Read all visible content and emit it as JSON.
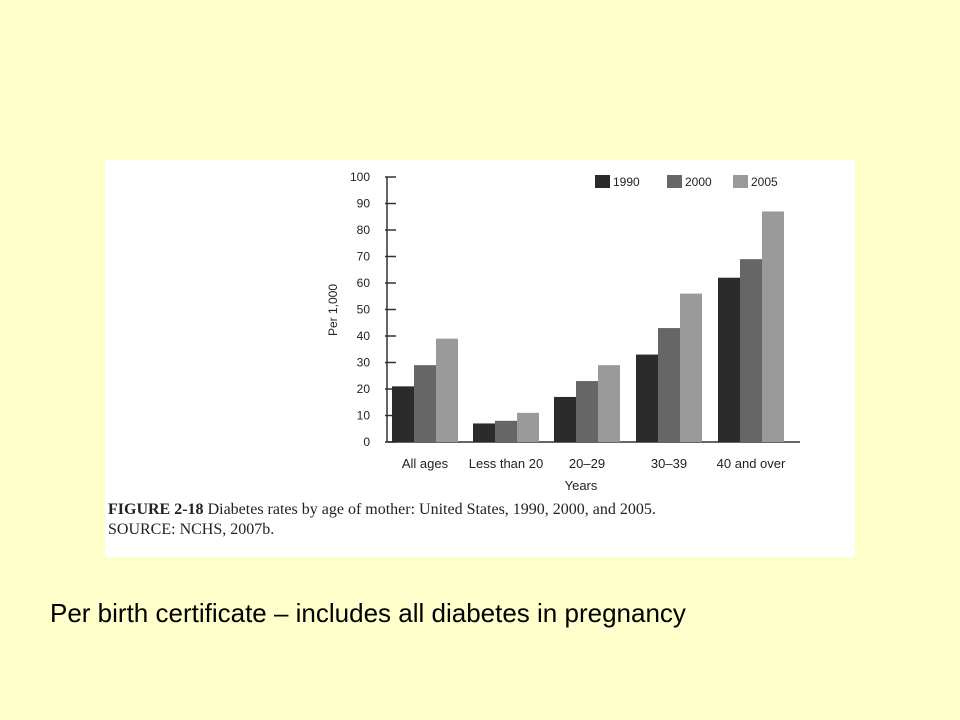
{
  "figure": {
    "caption_id": "FIGURE 2-18",
    "caption_text": "Diabetes rates by age of mother: United States, 1990, 2000, and 2005.",
    "caption_source": "SOURCE: NCHS, 2007b."
  },
  "slide_text": "Per birth certificate – includes all diabetes in pregnancy",
  "chart_data": {
    "type": "bar",
    "title": "",
    "xlabel": "Years",
    "ylabel": "Per 1,000",
    "ylim": [
      0,
      100
    ],
    "yticks": [
      0,
      10,
      20,
      30,
      40,
      50,
      60,
      70,
      80,
      90,
      100
    ],
    "categories": [
      "All ages",
      "Less than 20",
      "20–29",
      "30–39",
      "40 and over"
    ],
    "series": [
      {
        "name": "1990",
        "color": "#2b2b2b",
        "values": [
          21,
          7,
          17,
          33,
          62
        ]
      },
      {
        "name": "2000",
        "color": "#666666",
        "values": [
          29,
          8,
          23,
          43,
          69
        ]
      },
      {
        "name": "2005",
        "color": "#9a9a9a",
        "values": [
          39,
          11,
          29,
          56,
          87
        ]
      }
    ],
    "legend_position": "top-right",
    "grid": false
  }
}
